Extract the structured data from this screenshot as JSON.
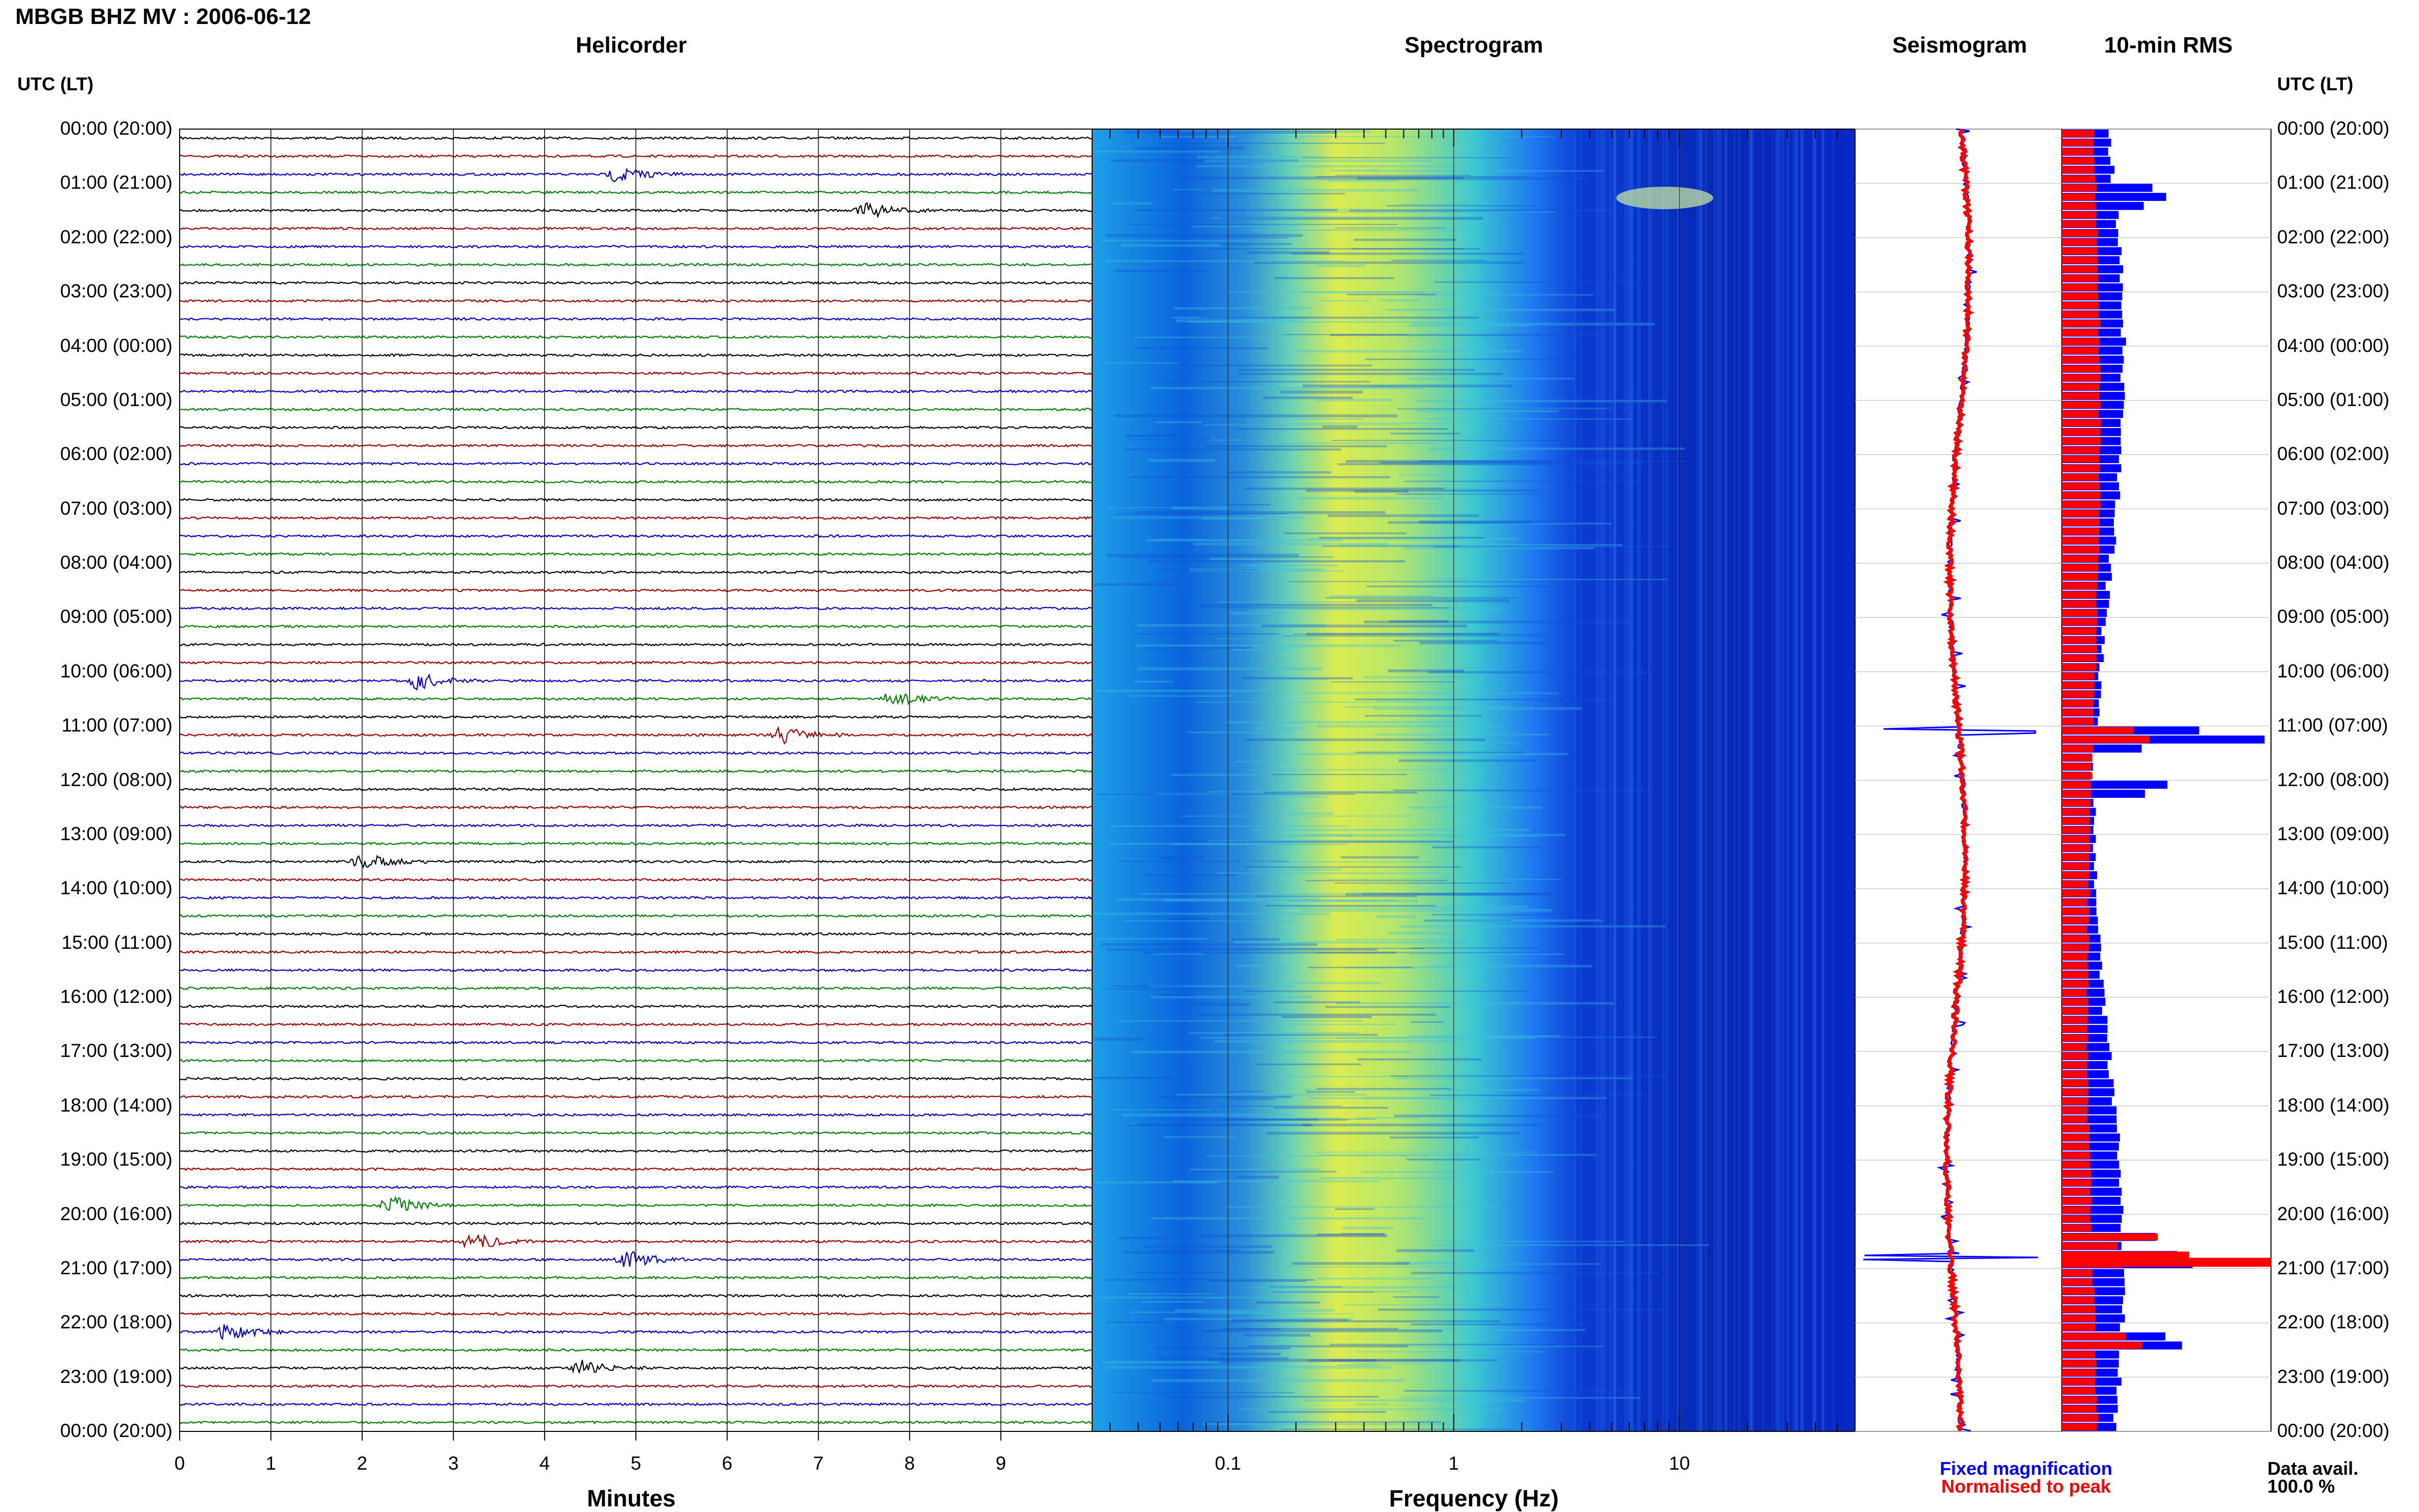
{
  "header": {
    "title": "MBGB BHZ MV : 2006-06-12",
    "utc_label_left": "UTC (LT)",
    "utc_label_right": "UTC (LT)"
  },
  "panels": {
    "helicorder": "Helicorder",
    "spectrogram": "Spectrogram",
    "seismogram": "Seismogram",
    "rms": "10-min RMS"
  },
  "time_labels": [
    "00:00 (20:00)",
    "01:00 (21:00)",
    "02:00 (22:00)",
    "03:00 (23:00)",
    "04:00 (00:00)",
    "05:00 (01:00)",
    "06:00 (02:00)",
    "07:00 (03:00)",
    "08:00 (04:00)",
    "09:00 (05:00)",
    "10:00 (06:00)",
    "11:00 (07:00)",
    "12:00 (08:00)",
    "13:00 (09:00)",
    "14:00 (10:00)",
    "15:00 (11:00)",
    "16:00 (12:00)",
    "17:00 (13:00)",
    "18:00 (14:00)",
    "19:00 (15:00)",
    "20:00 (16:00)",
    "21:00 (17:00)",
    "22:00 (18:00)",
    "23:00 (19:00)",
    "00:00 (20:00)"
  ],
  "helicorder_axis": {
    "label": "Minutes",
    "ticks": [
      "0",
      "1",
      "2",
      "3",
      "4",
      "5",
      "6",
      "7",
      "8",
      "9"
    ],
    "trace_colors": [
      "#000000",
      "#a00000",
      "#0000c8",
      "#008000"
    ]
  },
  "spectrogram_axis": {
    "label": "Frequency (Hz)",
    "ticks": [
      "0.1",
      "1",
      "10"
    ],
    "scale": "log"
  },
  "legend": {
    "fixed": "Fixed magnification",
    "normalised": "Normalised to peak",
    "fixed_color": "#0000ff",
    "normalised_color": "#ff0000"
  },
  "availability": {
    "label": "Data avail.",
    "value": "100.0 %"
  },
  "chart_data": {
    "type": "heatmap",
    "title": "MBGB BHZ MV : 2006-06-12",
    "subplots": [
      "Helicorder",
      "Spectrogram",
      "Seismogram",
      "10-min RMS"
    ],
    "time_range_utc": [
      "2006-06-12 00:00",
      "2006-06-13 00:00"
    ],
    "helicorder_events": [
      {
        "utc": "00:45",
        "minute": 4.8
      },
      {
        "utc": "01:10",
        "minute": 7.5
      },
      {
        "utc": "10:00",
        "minute": 2.6
      },
      {
        "utc": "10:15",
        "minute": 7.8
      },
      {
        "utc": "11:00",
        "minute": 6.6
      },
      {
        "utc": "13:20",
        "minute": 2.0
      },
      {
        "utc": "19:40",
        "minute": 2.3
      },
      {
        "utc": "20:20",
        "minute": 3.2
      },
      {
        "utc": "20:40",
        "minute": 4.9
      },
      {
        "utc": "21:55",
        "minute": 0.5
      },
      {
        "utc": "22:30",
        "minute": 4.4
      }
    ],
    "rms_10min": {
      "series": [
        {
          "name": "Fixed magnification",
          "color": "#0000ff"
        },
        {
          "name": "Normalised to peak",
          "color": "#ff0000"
        }
      ],
      "peaks": [
        {
          "utc": "01:00",
          "note": "elevated"
        },
        {
          "utc": "11:10",
          "note": "elevated"
        },
        {
          "utc": "20:50",
          "note": "maximum"
        },
        {
          "utc": "22:20",
          "note": "elevated"
        }
      ]
    }
  }
}
